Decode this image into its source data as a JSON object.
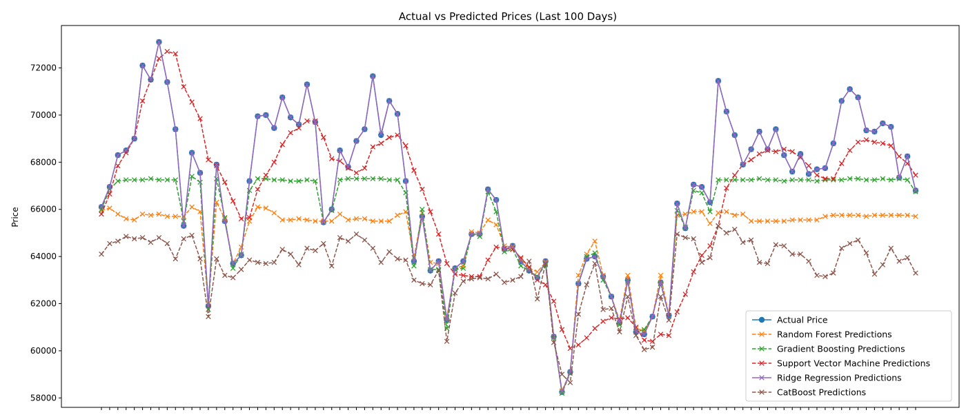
{
  "chart_data": {
    "type": "line",
    "title": "Actual vs Predicted Prices (Last 100 Days)",
    "xlabel": "",
    "ylabel": "Price",
    "ylim": [
      57600,
      73800
    ],
    "y_ticks": [
      58000,
      60000,
      62000,
      64000,
      66000,
      68000,
      70000,
      72000
    ],
    "x_tick_labels_note": "",
    "grid": false,
    "legend_position": "lower-right",
    "series": [
      {
        "name": "Actual Price",
        "color": "#1f77b4",
        "marker": "circle",
        "line": "solid",
        "values": [
          66100,
          66950,
          68300,
          68500,
          69000,
          72100,
          71500,
          73100,
          71400,
          69400,
          65300,
          68400,
          67550,
          61900,
          67900,
          65500,
          63700,
          64050,
          67200,
          69950,
          70000,
          69450,
          70750,
          69900,
          69600,
          71300,
          69700,
          65450,
          66000,
          68500,
          67800,
          68900,
          69400,
          71650,
          69150,
          70600,
          70050,
          67200,
          63800,
          65700,
          63400,
          63800,
          61300,
          63500,
          63800,
          64950,
          64950,
          66850,
          66400,
          64300,
          64450,
          63800,
          63400,
          63100,
          63800,
          60600,
          58250,
          59100,
          62850,
          63900,
          64000,
          63150,
          62300,
          61200,
          63000,
          60800,
          60700,
          61450,
          62900,
          61500,
          66250,
          65200,
          67050,
          66950,
          66300,
          71450,
          70150,
          69150,
          67900,
          68550,
          69300,
          68550,
          69400,
          68300,
          67600,
          68350,
          67500,
          67700,
          67750,
          68800,
          70600,
          71100,
          70750,
          69350,
          69300,
          69650,
          69500,
          67350,
          68250,
          66800
        ]
      },
      {
        "name": "Random Forest Predictions",
        "color": "#ff7f0e",
        "marker": "x",
        "line": "dashed",
        "values": [
          65950,
          66050,
          65800,
          65600,
          65550,
          65800,
          65750,
          65800,
          65700,
          65700,
          65700,
          66100,
          65900,
          62000,
          66300,
          65600,
          63700,
          64400,
          65500,
          66100,
          66050,
          65850,
          65550,
          65550,
          65600,
          65550,
          65500,
          65500,
          65500,
          65800,
          65550,
          65600,
          65600,
          65500,
          65500,
          65500,
          65750,
          65900,
          63950,
          65850,
          63750,
          63700,
          61400,
          63500,
          63600,
          65050,
          65000,
          65550,
          65350,
          64450,
          64400,
          63900,
          63500,
          63350,
          63750,
          60600,
          58300,
          59100,
          63200,
          64100,
          64650,
          63200,
          62300,
          61300,
          63200,
          60950,
          60850,
          61450,
          63200,
          61500,
          65750,
          65800,
          65900,
          65900,
          65400,
          65850,
          65900,
          65750,
          65800,
          65500,
          65500,
          65500,
          65500,
          65500,
          65550,
          65550,
          65550,
          65550,
          65700,
          65750,
          65750,
          65750,
          65750,
          65700,
          65750,
          65750,
          65750,
          65750,
          65750,
          65700
        ]
      },
      {
        "name": "Gradient Boosting Predictions",
        "color": "#2ca02c",
        "marker": "x",
        "line": "dashed",
        "values": [
          66000,
          66850,
          67200,
          67250,
          67250,
          67250,
          67300,
          67250,
          67250,
          67250,
          65500,
          67400,
          67150,
          61750,
          67300,
          65650,
          63500,
          64100,
          66800,
          67300,
          67300,
          67250,
          67250,
          67200,
          67200,
          67250,
          67200,
          65450,
          65950,
          67250,
          67300,
          67300,
          67300,
          67300,
          67300,
          67250,
          67250,
          66700,
          63600,
          66000,
          63450,
          63450,
          60950,
          63450,
          63500,
          64950,
          64850,
          66750,
          65900,
          64200,
          64300,
          63600,
          63400,
          63150,
          63650,
          60550,
          58200,
          59050,
          62850,
          64000,
          64150,
          63000,
          62300,
          61100,
          62950,
          60800,
          60900,
          61450,
          62850,
          61500,
          65950,
          65250,
          66800,
          66700,
          65900,
          67250,
          67250,
          67250,
          67250,
          67250,
          67300,
          67250,
          67250,
          67200,
          67250,
          67250,
          67250,
          67200,
          67250,
          67250,
          67250,
          67300,
          67300,
          67250,
          67250,
          67300,
          67250,
          67300,
          67250,
          66750
        ]
      },
      {
        "name": "Support Vector Machine Predictions",
        "color": "#d62728",
        "marker": "x",
        "line": "dashed",
        "values": [
          65800,
          66650,
          67850,
          68400,
          69000,
          70600,
          71500,
          72400,
          72700,
          72600,
          71200,
          70550,
          69850,
          68100,
          67850,
          67150,
          66350,
          65600,
          65650,
          66850,
          67450,
          68000,
          68750,
          69250,
          69450,
          69750,
          69750,
          69050,
          68150,
          68050,
          67750,
          67550,
          67750,
          68650,
          68800,
          69050,
          69150,
          68700,
          67650,
          66850,
          65900,
          64950,
          63700,
          63250,
          63200,
          63150,
          63150,
          63850,
          64400,
          64350,
          64300,
          63950,
          63550,
          63000,
          62800,
          62100,
          60900,
          60100,
          60250,
          60550,
          60950,
          61250,
          61400,
          61350,
          61400,
          61000,
          60450,
          60400,
          60700,
          60650,
          61650,
          62400,
          63350,
          64050,
          64450,
          65300,
          66900,
          67450,
          67900,
          68100,
          68350,
          68500,
          68450,
          68550,
          68450,
          68200,
          67850,
          67450,
          67300,
          67300,
          67950,
          68500,
          68850,
          68950,
          68850,
          68800,
          68700,
          68250,
          67950,
          67450
        ]
      },
      {
        "name": "Ridge Regression Predictions",
        "color": "#9467bd",
        "marker": "x",
        "line": "solid",
        "values": [
          66100,
          66950,
          68300,
          68500,
          69000,
          72100,
          71500,
          73100,
          71400,
          69400,
          65300,
          68400,
          67550,
          61900,
          67900,
          65500,
          63700,
          64050,
          67200,
          69950,
          70000,
          69450,
          70750,
          69900,
          69600,
          71300,
          69700,
          65450,
          66000,
          68500,
          67800,
          68900,
          69400,
          71650,
          69200,
          70600,
          70050,
          67200,
          63800,
          65700,
          63400,
          63800,
          61300,
          63500,
          63800,
          64950,
          64950,
          66850,
          66400,
          64300,
          64450,
          63800,
          63400,
          63100,
          63800,
          60600,
          58250,
          59100,
          62850,
          63900,
          64000,
          63150,
          62300,
          61200,
          63000,
          60800,
          60700,
          61450,
          62900,
          61500,
          66250,
          65200,
          67050,
          66950,
          66300,
          71450,
          70150,
          69150,
          67900,
          68550,
          69300,
          68550,
          69400,
          68300,
          67600,
          68350,
          67500,
          67700,
          67750,
          68800,
          70600,
          71100,
          70750,
          69350,
          69300,
          69650,
          69500,
          67350,
          68250,
          66800
        ]
      },
      {
        "name": "CatBoost Predictions",
        "color": "#8c564b",
        "marker": "x",
        "line": "dashed",
        "values": [
          64100,
          64550,
          64650,
          64850,
          64750,
          64800,
          64600,
          64800,
          64550,
          63900,
          64750,
          64900,
          63900,
          61450,
          63900,
          63200,
          63100,
          63450,
          63850,
          63750,
          63700,
          63750,
          64300,
          64100,
          63650,
          64350,
          64250,
          64550,
          63600,
          64800,
          64650,
          64950,
          64700,
          64350,
          63750,
          64200,
          63900,
          63850,
          63000,
          62850,
          62800,
          63400,
          60400,
          62450,
          62950,
          63050,
          63100,
          63050,
          63250,
          62900,
          63000,
          63150,
          63800,
          62200,
          63700,
          60350,
          59000,
          58650,
          61550,
          62800,
          63700,
          61750,
          61800,
          60800,
          62300,
          60650,
          60050,
          60150,
          62300,
          61300,
          64950,
          64800,
          64750,
          63750,
          63950,
          65300,
          65000,
          65150,
          64600,
          64700,
          63750,
          63700,
          64500,
          64450,
          64100,
          64100,
          63800,
          63200,
          63150,
          63300,
          64350,
          64550,
          64700,
          64150,
          63250,
          63650,
          64350,
          63800,
          63950,
          63300
        ]
      }
    ]
  }
}
